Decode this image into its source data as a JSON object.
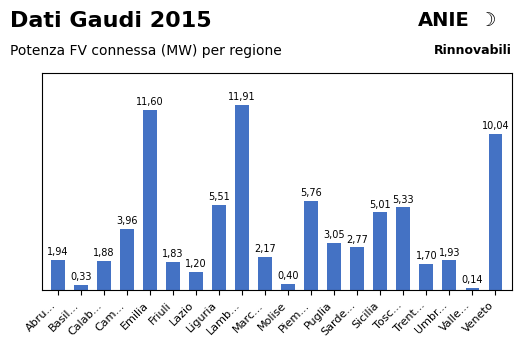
{
  "chart_data": {
    "type": "bar",
    "title": "Dati Gaudi 2015",
    "subtitle": "Potenza FV connessa (MW) per regione",
    "annotations": [
      "ANIE",
      "☽",
      "Rinnovabili"
    ],
    "categories": [
      "Abru...",
      "Basil...",
      "Calab...",
      "Cam...",
      "Emilia",
      "Friuli",
      "Lazio",
      "Liguria",
      "Lamb...",
      "Marc...",
      "Molise",
      "Piem...",
      "Puglia",
      "Sarde...",
      "Sicilia",
      "Tosc...",
      "Trent...",
      "Umbr...",
      "Valle...",
      "Veneto"
    ],
    "values": [
      1.94,
      0.33,
      1.88,
      3.96,
      11.6,
      1.83,
      1.2,
      5.51,
      11.91,
      2.17,
      0.4,
      5.76,
      3.05,
      2.77,
      5.01,
      5.33,
      1.7,
      1.93,
      0.14,
      10.04
    ],
    "value_labels": [
      "1,94",
      "0,33",
      "1,88",
      "3,96",
      "11,60",
      "1,83",
      "1,20",
      "5,51",
      "11,91",
      "2,17",
      "0,40",
      "5,76",
      "3,05",
      "2,77",
      "5,01",
      "5,33",
      "1,70",
      "1,93",
      "0,14",
      "10,04"
    ],
    "color": "#4472C4",
    "ylim": [
      0,
      14
    ],
    "data_labels": true,
    "tick_labels": "x",
    "grid": false
  }
}
